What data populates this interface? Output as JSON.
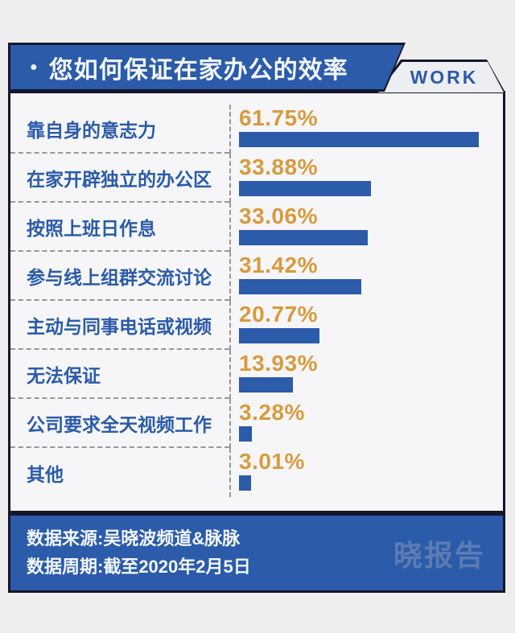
{
  "header": {
    "bullet": "●",
    "title": "您如何保证在家办公的效率",
    "tag": "WORK"
  },
  "chart_data": {
    "type": "bar",
    "orientation": "horizontal",
    "title": "您如何保证在家办公的效率",
    "categories": [
      "靠自身的意志力",
      "在家开辟独立的办公区",
      "按照上班日作息",
      "参与线上组群交流讨论",
      "主动与同事电话或视频",
      "无法保证",
      "公司要求全天视频工作",
      "其他"
    ],
    "values": [
      61.75,
      33.88,
      33.06,
      31.42,
      20.77,
      13.93,
      3.28,
      3.01
    ],
    "value_labels": [
      "61.75%",
      "33.88%",
      "33.06%",
      "31.42%",
      "20.77%",
      "13.93%",
      "3.28%",
      "3.01%"
    ],
    "xlim": [
      0,
      65
    ],
    "grid": false,
    "legend": false,
    "bar_color": "#2b5ba9",
    "value_label_color": "#d89b3c",
    "category_label_color": "#2b5ba9"
  },
  "footer": {
    "source": "数据来源:吴晓波频道&脉脉",
    "period": "数据周期:截至2020年2月5日",
    "logo": "晓报告"
  },
  "colors": {
    "page_bg": "#eeeeee",
    "card_bg": "#f6f6f8",
    "outline": "#15162b",
    "banner_blue": "#2b5ba9",
    "accent_orange": "#d89b3c",
    "tag_bg": "#eceef2",
    "logo_blue": "#5b7cb4",
    "dash_gray": "#97979c"
  }
}
